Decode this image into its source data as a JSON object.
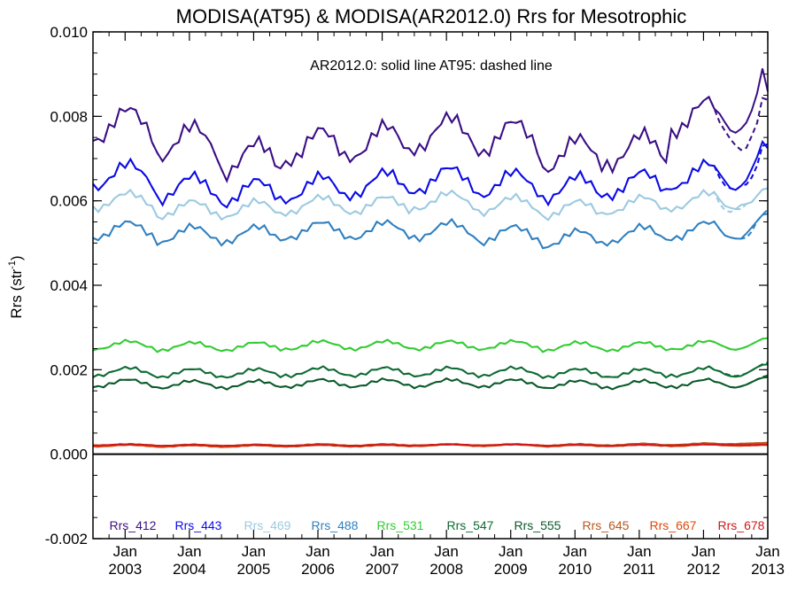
{
  "chart_data": {
    "type": "line",
    "title": "MODISA(AT95) & MODISA(AR2012.0)  Rrs for Mesotrophic",
    "subtitle": "AR2012.0: solid line   AT95: dashed line",
    "ylabel_main": "Rrs (str",
    "ylabel_sup": "-1",
    "ylabel_close": ")",
    "xlabel": "",
    "ylim": [
      -0.002,
      0.01
    ],
    "yticks": [
      "-0.002",
      "0.000",
      "0.002",
      "0.004",
      "0.006",
      "0.008",
      "0.010"
    ],
    "ytick_values": [
      -0.002,
      0.0,
      0.002,
      0.004,
      0.006,
      0.008,
      0.01
    ],
    "xlim": [
      "2002-07",
      "2013-01"
    ],
    "xticks": [
      {
        "month": "Jan",
        "year": "2003"
      },
      {
        "month": "Jan",
        "year": "2004"
      },
      {
        "month": "Jan",
        "year": "2005"
      },
      {
        "month": "Jan",
        "year": "2006"
      },
      {
        "month": "Jan",
        "year": "2007"
      },
      {
        "month": "Jan",
        "year": "2008"
      },
      {
        "month": "Jan",
        "year": "2009"
      },
      {
        "month": "Jan",
        "year": "2010"
      },
      {
        "month": "Jan",
        "year": "2011"
      },
      {
        "month": "Jan",
        "year": "2012"
      },
      {
        "month": "Jan",
        "year": "2013"
      }
    ],
    "zero_line": true,
    "legend_position": "bottom inside plot",
    "series": [
      {
        "name": "Rrs_412",
        "color": "#3b0f85",
        "annual": [
          0.0078,
          0.0074,
          0.007,
          0.0073,
          0.0074,
          0.0076,
          0.0075,
          0.0071,
          0.0072,
          0.008
        ],
        "amp": 0.0004,
        "end_values": [
          0.008,
          0.0079,
          0.0078,
          0.0078,
          0.0079,
          0.008,
          0.0082,
          0.0085,
          0.009,
          0.0084
        ],
        "end_values_dashed": [
          0.0078,
          0.0077,
          0.0076,
          0.0075,
          0.0074,
          0.0074,
          0.0076,
          0.0078,
          0.0083,
          0.0082
        ]
      },
      {
        "name": "Rrs_443",
        "color": "#0a0ae6",
        "annual": [
          0.0066,
          0.0063,
          0.0062,
          0.0063,
          0.0064,
          0.0065,
          0.0064,
          0.0063,
          0.0064,
          0.0066
        ],
        "amp": 0.0003,
        "end_values": [
          0.0066,
          0.0065,
          0.0064,
          0.0064,
          0.0065,
          0.0066,
          0.0068,
          0.007,
          0.0073,
          0.0071
        ],
        "end_values_dashed": [
          0.0065,
          0.0064,
          0.0064,
          0.0064,
          0.0065,
          0.0065,
          0.0066,
          0.0068,
          0.0072,
          0.0072
        ]
      },
      {
        "name": "Rrs_469",
        "color": "#9ccae0",
        "annual": [
          0.006,
          0.0058,
          0.0058,
          0.0059,
          0.0059,
          0.006,
          0.0059,
          0.0058,
          0.0059,
          0.006
        ],
        "amp": 0.0002,
        "end_values": [
          0.006,
          0.0059,
          0.0059,
          0.0059,
          0.006,
          0.006,
          0.006,
          0.0061,
          0.0062,
          0.0062
        ],
        "end_values_dashed": [
          0.0059,
          0.0058,
          0.0058,
          0.0059,
          0.0059,
          0.006,
          0.006,
          0.0061,
          0.0062,
          0.0062
        ]
      },
      {
        "name": "Rrs_488",
        "color": "#3080c0",
        "annual": [
          0.0053,
          0.0052,
          0.0052,
          0.0053,
          0.0053,
          0.0053,
          0.0052,
          0.0051,
          0.0052,
          0.0053
        ],
        "amp": 0.0002,
        "end_values": [
          0.0053,
          0.0052,
          0.0052,
          0.0052,
          0.0052,
          0.0053,
          0.0054,
          0.0055,
          0.0056,
          0.0056
        ],
        "end_values_dashed": [
          0.0053,
          0.0052,
          0.0052,
          0.0052,
          0.0052,
          0.0052,
          0.0053,
          0.0055,
          0.0056,
          0.0057
        ]
      },
      {
        "name": "Rrs_531",
        "color": "#33cc33",
        "annual": [
          0.00258,
          0.00255,
          0.00255,
          0.00258,
          0.00258,
          0.00258,
          0.00258,
          0.00255,
          0.00255,
          0.00258
        ],
        "amp": 0.0001,
        "end_values": [
          0.00258,
          0.00255,
          0.00252,
          0.00252,
          0.00255,
          0.00258,
          0.00262,
          0.00266,
          0.0027,
          0.0027
        ],
        "end_values_dashed": [
          0.00258,
          0.00255,
          0.00252,
          0.00252,
          0.00255,
          0.00258,
          0.00262,
          0.00266,
          0.0027,
          0.00272
        ]
      },
      {
        "name": "Rrs_547",
        "color": "#0d6b33",
        "annual": [
          0.00195,
          0.00192,
          0.00192,
          0.00195,
          0.00195,
          0.00195,
          0.00195,
          0.00192,
          0.00192,
          0.00195
        ],
        "amp": 0.0001,
        "end_values": [
          0.00195,
          0.0019,
          0.00188,
          0.00188,
          0.0019,
          0.00195,
          0.002,
          0.00205,
          0.00208,
          0.00208
        ],
        "end_values_dashed": [
          0.00195,
          0.00192,
          0.0019,
          0.0019,
          0.00192,
          0.00195,
          0.002,
          0.00205,
          0.0021,
          0.00212
        ]
      },
      {
        "name": "Rrs_555",
        "color": "#0b5a2a",
        "annual": [
          0.00168,
          0.00165,
          0.00165,
          0.00168,
          0.00168,
          0.00168,
          0.00168,
          0.00165,
          0.00165,
          0.00168
        ],
        "amp": 9e-05,
        "end_values": [
          0.00168,
          0.00165,
          0.00162,
          0.00162,
          0.00165,
          0.00168,
          0.00172,
          0.00176,
          0.00178,
          0.00178
        ],
        "end_values_dashed": [
          0.00168,
          0.00165,
          0.00162,
          0.00162,
          0.00165,
          0.00168,
          0.00172,
          0.00176,
          0.0018,
          0.00182
        ]
      },
      {
        "name": "Rrs_645",
        "color": "#b8591e",
        "annual": [
          0.00022,
          0.00021,
          0.00021,
          0.00022,
          0.00022,
          0.00022,
          0.00022,
          0.00022,
          0.00023,
          0.00024
        ],
        "amp": 2e-05,
        "end_values": [
          0.00024,
          0.00024,
          0.00025,
          0.00025,
          0.00026,
          0.00026,
          0.00026,
          0.00026,
          0.00026,
          0.00026
        ],
        "end_values_dashed": [
          0.00024,
          0.00024,
          0.00025,
          0.00025,
          0.00026,
          0.00026,
          0.00026,
          0.00026,
          0.00026,
          0.00026
        ]
      },
      {
        "name": "Rrs_667",
        "color": "#dd4a0c",
        "annual": [
          0.0002,
          0.00019,
          0.00019,
          0.0002,
          0.0002,
          0.00021,
          0.00021,
          0.0002,
          0.00021,
          0.00021
        ],
        "amp": 2e-05,
        "end_values": [
          0.00021,
          0.00021,
          0.00021,
          0.00021,
          0.00021,
          0.00021,
          0.00021,
          0.00021,
          0.00021,
          0.00021
        ],
        "end_values_dashed": [
          0.00021,
          0.00021,
          0.00021,
          0.00021,
          0.00021,
          0.00021,
          0.00021,
          0.00021,
          0.00021,
          0.00021
        ]
      },
      {
        "name": "Rrs_678",
        "color": "#cc1a1a",
        "annual": [
          0.00022,
          0.00021,
          0.00021,
          0.00021,
          0.00021,
          0.00022,
          0.00022,
          0.00021,
          0.00021,
          0.00022
        ],
        "amp": 1e-05,
        "end_values": [
          0.00022,
          0.00022,
          0.00022,
          0.00022,
          0.00022,
          0.00022,
          0.00022,
          0.00022,
          0.00022,
          0.00022
        ],
        "end_values_dashed": [
          0.00022,
          0.00022,
          0.00022,
          0.00022,
          0.00022,
          0.00022,
          0.00022,
          0.00022,
          0.00022,
          0.00022
        ]
      }
    ]
  }
}
